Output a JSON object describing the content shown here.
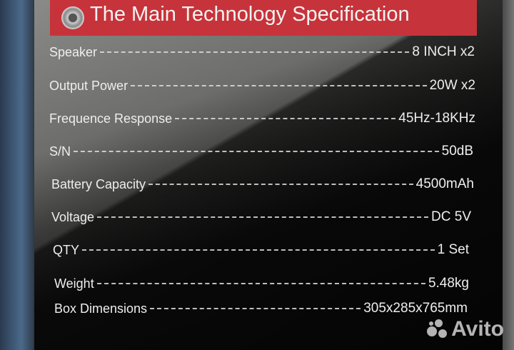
{
  "title": "The Main Technology Specification",
  "specs": [
    {
      "label": "Speaker",
      "value": "8 INCH x2"
    },
    {
      "label": "Output Power",
      "value": "20W x2"
    },
    {
      "label": "Frequence Response",
      "value": "45Hz-18KHz"
    },
    {
      "label": "S/N",
      "value": "50dB"
    },
    {
      "label": "Battery Capacity",
      "value": "4500mAh"
    },
    {
      "label": "Voltage",
      "value": "DC 5V"
    },
    {
      "label": "QTY",
      "value": "1 Set"
    },
    {
      "label": "Weight",
      "value": "5.48kg"
    },
    {
      "label": "Box Dimensions",
      "value": "305x285x765mm"
    }
  ],
  "watermark": "Avito",
  "colors": {
    "banner": "#c7333a"
  }
}
